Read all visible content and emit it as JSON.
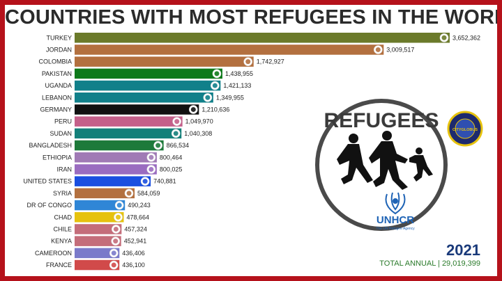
{
  "title": "COUNTRIES WITH MOST REFUGEES IN THE WORLD",
  "year": "2021",
  "total_annual": "TOTAL ANNUAL | 29,019,399",
  "emblem": {
    "word": "REFUGEES",
    "agency": "UNHCR",
    "agency_sub": "The UN Refugee Agency",
    "badge_text": "CITYGLOBUS"
  },
  "colors": {
    "frame": "#b5121b",
    "year": "#1a3a7a",
    "total": "#2a7a2a"
  },
  "chart_data": {
    "type": "bar",
    "orientation": "horizontal",
    "title": "COUNTRIES WITH MOST REFUGEES IN THE WORLD",
    "xlabel": "",
    "ylabel": "",
    "xlim": [
      0,
      3652362
    ],
    "grid": false,
    "legend": "none",
    "categories": [
      "TURKEY",
      "JORDAN",
      "COLOMBIA",
      "PAKISTAN",
      "UGANDA",
      "LEBANON",
      "GERMANY",
      "PERU",
      "SUDAN",
      "BANGLADESH",
      "ETHIOPIA",
      "IRAN",
      "UNITED STATES",
      "SYRIA",
      "DR OF CONGO",
      "CHAD",
      "CHILE",
      "KENYA",
      "CAMEROON",
      "FRANCE"
    ],
    "values": [
      3652362,
      3009517,
      1742927,
      1438955,
      1421133,
      1349955,
      1210636,
      1049970,
      1040308,
      866534,
      800464,
      800025,
      740881,
      584059,
      490243,
      478664,
      457324,
      452941,
      436406,
      436100
    ],
    "value_labels": [
      "3,652,362",
      "3,009,517",
      "1,742,927",
      "1,438,955",
      "1,421,133",
      "1,349,955",
      "1,210,636",
      "1,049,970",
      "1,040,308",
      "866,534",
      "800,464",
      "800,025",
      "740,881",
      "584,059",
      "490,243",
      "478,664",
      "457,324",
      "452,941",
      "436,406",
      "436,100"
    ],
    "bar_colors": [
      "#6b7a2a",
      "#b3703f",
      "#b3703f",
      "#0e7a1a",
      "#11808a",
      "#11808a",
      "#111111",
      "#c4608a",
      "#13807a",
      "#1d7a3a",
      "#a07ab5",
      "#9a6cc0",
      "#1a4fe0",
      "#b3703f",
      "#2f86d6",
      "#e6c20e",
      "#c46d7a",
      "#c46d7a",
      "#7a7aca",
      "#d14a4a"
    ],
    "flags": [
      "turkey-flag-icon",
      "jordan-flag-icon",
      "colombia-flag-icon",
      "pakistan-flag-icon",
      "uganda-flag-icon",
      "lebanon-flag-icon",
      "germany-flag-icon",
      "peru-flag-icon",
      "sudan-flag-icon",
      "bangladesh-flag-icon",
      "ethiopia-flag-icon",
      "iran-flag-icon",
      "united-states-flag-icon",
      "syria-flag-icon",
      "dr-congo-flag-icon",
      "chad-flag-icon",
      "chile-flag-icon",
      "kenya-flag-icon",
      "cameroon-flag-icon",
      "france-flag-icon"
    ]
  }
}
